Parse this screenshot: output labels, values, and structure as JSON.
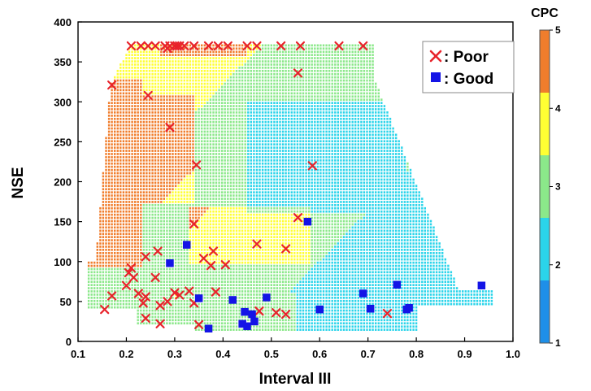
{
  "chart_data": {
    "type": "scatter",
    "xlabel": "Interval III",
    "ylabel": "NSE",
    "xlim": [
      0.1,
      1.0
    ],
    "ylim": [
      0,
      400
    ],
    "x_ticks": [
      "0.1",
      "0.2",
      "0.3",
      "0.4",
      "0.5",
      "0.6",
      "0.7",
      "0.8",
      "0.9",
      "1.0"
    ],
    "y_ticks": [
      "0",
      "50",
      "100",
      "150",
      "200",
      "250",
      "300",
      "350",
      "400"
    ],
    "grid": false,
    "legend_position": "top-right",
    "background_field": {
      "kind": "contour",
      "colorbar_title": "CPC",
      "colorbar_range": [
        1,
        5
      ],
      "colorbar_ticks": [
        "1",
        "2",
        "3",
        "4",
        "5"
      ],
      "colors": [
        "#1e8fe8",
        "#2bd4ea",
        "#8be88a",
        "#ffff33",
        "#f07d2c"
      ]
    },
    "series": [
      {
        "name": ": Poor",
        "marker": "x",
        "color": "#e8232b",
        "points": [
          [
            0.21,
            370
          ],
          [
            0.23,
            370
          ],
          [
            0.245,
            370
          ],
          [
            0.26,
            370
          ],
          [
            0.28,
            370
          ],
          [
            0.29,
            370
          ],
          [
            0.3,
            370
          ],
          [
            0.305,
            370
          ],
          [
            0.31,
            370
          ],
          [
            0.32,
            370
          ],
          [
            0.34,
            370
          ],
          [
            0.37,
            370
          ],
          [
            0.39,
            370
          ],
          [
            0.41,
            370
          ],
          [
            0.45,
            370
          ],
          [
            0.47,
            370
          ],
          [
            0.52,
            370
          ],
          [
            0.56,
            370
          ],
          [
            0.64,
            370
          ],
          [
            0.69,
            370
          ],
          [
            0.285,
            367
          ],
          [
            0.555,
            336
          ],
          [
            0.17,
            321
          ],
          [
            0.245,
            308
          ],
          [
            0.29,
            268
          ],
          [
            0.345,
            221
          ],
          [
            0.585,
            220
          ],
          [
            0.555,
            155
          ],
          [
            0.34,
            147
          ],
          [
            0.24,
            106
          ],
          [
            0.265,
            113
          ],
          [
            0.205,
            86
          ],
          [
            0.21,
            92
          ],
          [
            0.215,
            80
          ],
          [
            0.225,
            60
          ],
          [
            0.17,
            57
          ],
          [
            0.155,
            40
          ],
          [
            0.2,
            70
          ],
          [
            0.235,
            48
          ],
          [
            0.24,
            56
          ],
          [
            0.26,
            80
          ],
          [
            0.27,
            45
          ],
          [
            0.285,
            50
          ],
          [
            0.3,
            61
          ],
          [
            0.31,
            58
          ],
          [
            0.33,
            63
          ],
          [
            0.34,
            48
          ],
          [
            0.35,
            21
          ],
          [
            0.36,
            104
          ],
          [
            0.375,
            95
          ],
          [
            0.38,
            113
          ],
          [
            0.385,
            62
          ],
          [
            0.405,
            96
          ],
          [
            0.47,
            122
          ],
          [
            0.475,
            38
          ],
          [
            0.51,
            36
          ],
          [
            0.53,
            34
          ],
          [
            0.53,
            116
          ],
          [
            0.24,
            29
          ],
          [
            0.27,
            22
          ],
          [
            0.74,
            35
          ]
        ]
      },
      {
        "name": ": Good",
        "marker": "square",
        "color": "#1414e6",
        "points": [
          [
            0.325,
            121
          ],
          [
            0.29,
            98
          ],
          [
            0.575,
            150
          ],
          [
            0.35,
            54
          ],
          [
            0.42,
            52
          ],
          [
            0.44,
            22
          ],
          [
            0.445,
            37
          ],
          [
            0.45,
            19
          ],
          [
            0.46,
            34
          ],
          [
            0.465,
            25
          ],
          [
            0.37,
            16
          ],
          [
            0.49,
            55
          ],
          [
            0.6,
            40
          ],
          [
            0.69,
            60
          ],
          [
            0.705,
            41
          ],
          [
            0.76,
            71
          ],
          [
            0.78,
            40
          ],
          [
            0.785,
            42
          ],
          [
            0.935,
            70
          ]
        ]
      }
    ]
  }
}
